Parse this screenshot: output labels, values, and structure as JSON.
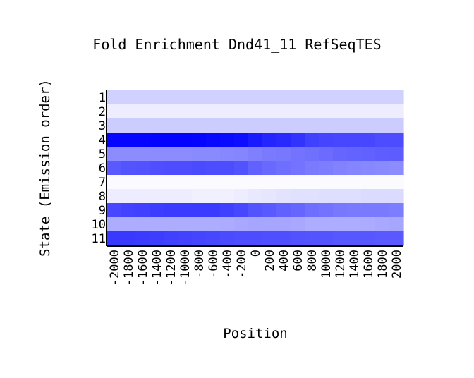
{
  "chart_data": {
    "type": "heatmap",
    "title": "Fold Enrichment Dnd41_11 RefSeqTES",
    "xlabel": "Position",
    "ylabel": "State (Emission order)",
    "x": [
      "-2000",
      "-1800",
      "-1600",
      "-1400",
      "-1200",
      "-1000",
      "-800",
      "-600",
      "-400",
      "-200",
      "0",
      "200",
      "400",
      "600",
      "800",
      "1000",
      "1200",
      "1400",
      "1600",
      "1800",
      "2000"
    ],
    "x_tick_labels": [
      "-2000",
      "-1800",
      "-1600",
      "-1400",
      "-1200",
      "-1000",
      "-800",
      "-600",
      "-400",
      "-200",
      "0",
      "200",
      "400",
      "600",
      "800",
      "1000",
      "1200",
      "1400",
      "1600",
      "1800",
      "2000"
    ],
    "y": [
      "1",
      "2",
      "3",
      "4",
      "5",
      "6",
      "7",
      "8",
      "9",
      "10",
      "11"
    ],
    "color_low": "#ffffff",
    "color_high": "#0000ff",
    "value_range": [
      0,
      1
    ],
    "values": [
      [
        0.18,
        0.18,
        0.18,
        0.18,
        0.18,
        0.18,
        0.18,
        0.18,
        0.18,
        0.18,
        0.18,
        0.18,
        0.18,
        0.18,
        0.18,
        0.18,
        0.18,
        0.18,
        0.18,
        0.18,
        0.18
      ],
      [
        0.07,
        0.07,
        0.07,
        0.07,
        0.07,
        0.07,
        0.07,
        0.07,
        0.07,
        0.07,
        0.07,
        0.07,
        0.07,
        0.07,
        0.07,
        0.07,
        0.07,
        0.07,
        0.07,
        0.07,
        0.07
      ],
      [
        0.2,
        0.2,
        0.2,
        0.2,
        0.2,
        0.2,
        0.2,
        0.2,
        0.2,
        0.2,
        0.2,
        0.2,
        0.2,
        0.2,
        0.2,
        0.2,
        0.2,
        0.2,
        0.2,
        0.2,
        0.2
      ],
      [
        0.98,
        0.98,
        0.98,
        0.99,
        0.99,
        0.99,
        0.98,
        0.97,
        0.96,
        0.95,
        0.9,
        0.86,
        0.84,
        0.8,
        0.75,
        0.73,
        0.72,
        0.72,
        0.72,
        0.7,
        0.7
      ],
      [
        0.45,
        0.45,
        0.45,
        0.45,
        0.45,
        0.45,
        0.46,
        0.46,
        0.47,
        0.48,
        0.5,
        0.52,
        0.53,
        0.55,
        0.56,
        0.58,
        0.6,
        0.61,
        0.62,
        0.63,
        0.64
      ],
      [
        0.65,
        0.67,
        0.68,
        0.69,
        0.7,
        0.7,
        0.71,
        0.7,
        0.7,
        0.68,
        0.62,
        0.59,
        0.57,
        0.55,
        0.52,
        0.51,
        0.49,
        0.48,
        0.47,
        0.46,
        0.45
      ],
      [
        0.02,
        0.02,
        0.02,
        0.02,
        0.02,
        0.02,
        0.02,
        0.02,
        0.02,
        0.02,
        0.02,
        0.02,
        0.02,
        0.02,
        0.02,
        0.02,
        0.02,
        0.02,
        0.02,
        0.02,
        0.02
      ],
      [
        0.07,
        0.07,
        0.07,
        0.07,
        0.07,
        0.07,
        0.06,
        0.06,
        0.06,
        0.07,
        0.09,
        0.1,
        0.11,
        0.12,
        0.12,
        0.13,
        0.13,
        0.13,
        0.14,
        0.14,
        0.14
      ],
      [
        0.72,
        0.74,
        0.75,
        0.76,
        0.77,
        0.77,
        0.77,
        0.77,
        0.75,
        0.72,
        0.67,
        0.65,
        0.62,
        0.6,
        0.57,
        0.55,
        0.53,
        0.52,
        0.52,
        0.52,
        0.51
      ],
      [
        0.32,
        0.32,
        0.32,
        0.32,
        0.32,
        0.32,
        0.32,
        0.32,
        0.33,
        0.34,
        0.35,
        0.35,
        0.35,
        0.34,
        0.32,
        0.32,
        0.32,
        0.32,
        0.33,
        0.34,
        0.35
      ],
      [
        0.78,
        0.78,
        0.77,
        0.76,
        0.75,
        0.74,
        0.73,
        0.72,
        0.71,
        0.7,
        0.7,
        0.69,
        0.69,
        0.68,
        0.67,
        0.67,
        0.66,
        0.66,
        0.66,
        0.65,
        0.65
      ]
    ]
  }
}
